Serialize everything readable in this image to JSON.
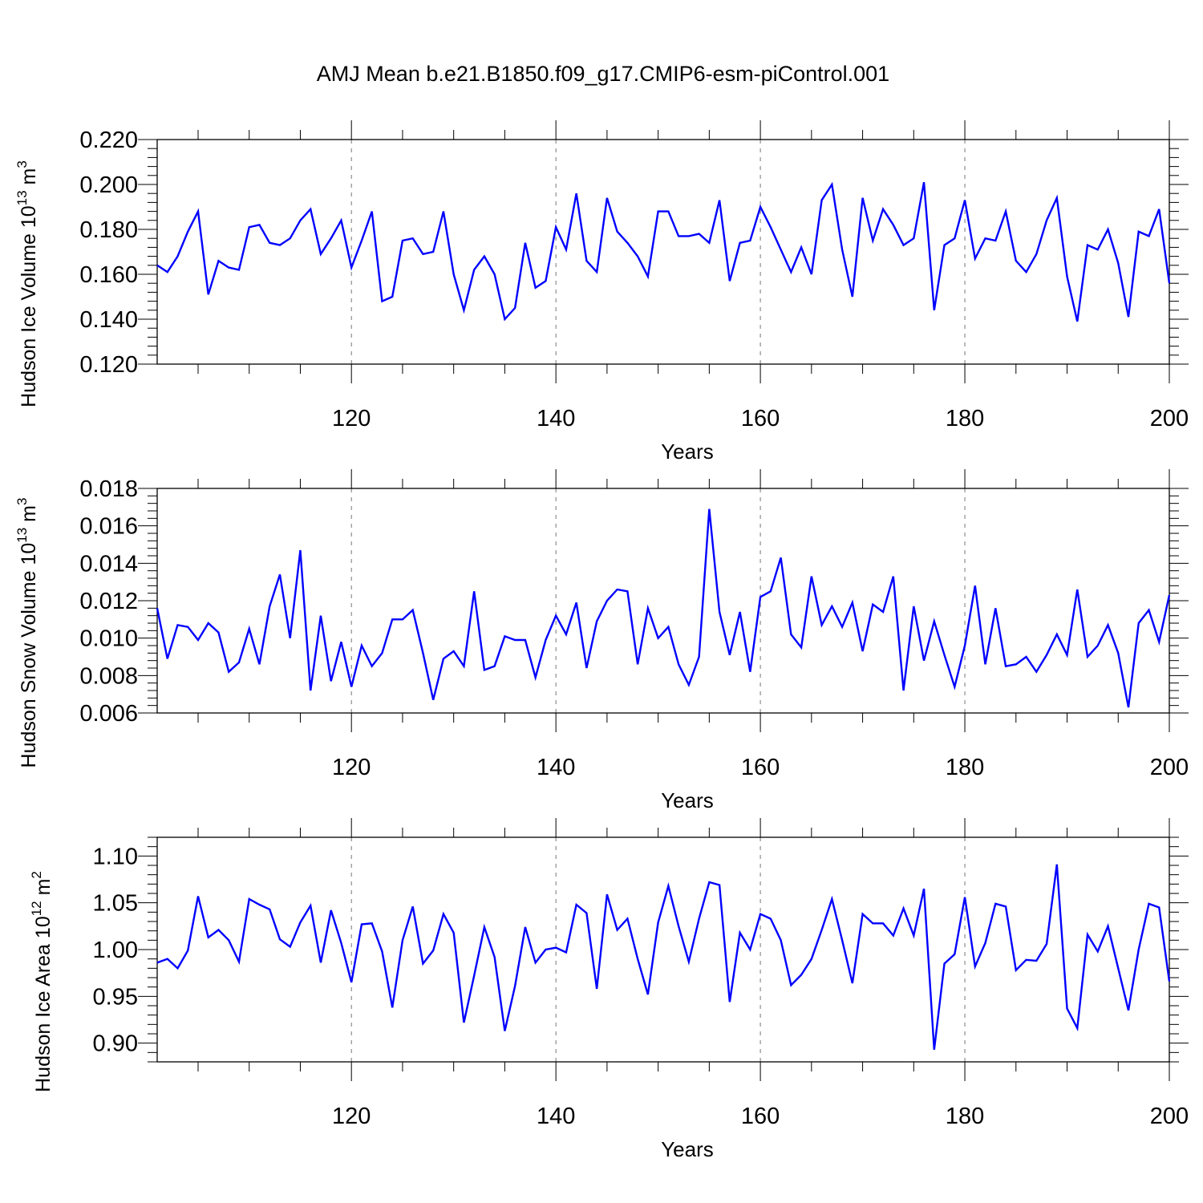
{
  "chart_data": [
    {
      "type": "line",
      "title": "AMJ Mean b.e21.B1850.f09_g17.CMIP6-esm-piControl.001",
      "ylabel_main": "Hudson Ice Volume 10",
      "ylabel_exp": "13",
      "ylabel_unit": " m",
      "ylabel_unit_exp": "3",
      "xlabel": "Years",
      "xlim": [
        101,
        200
      ],
      "ylim": [
        0.12,
        0.22
      ],
      "yticks": [
        "0.120",
        "0.140",
        "0.160",
        "0.180",
        "0.200",
        "0.220"
      ],
      "yticks_values": [
        0.12,
        0.14,
        0.16,
        0.18,
        0.2,
        0.22
      ],
      "xticks": [
        "120",
        "140",
        "160",
        "180",
        "200"
      ],
      "xticks_values": [
        120,
        140,
        160,
        180,
        200
      ],
      "grid_x": [
        120,
        140,
        160,
        180
      ],
      "color": "#0000ff",
      "x_start": 101,
      "values": [
        0.164,
        0.161,
        0.168,
        0.179,
        0.188,
        0.151,
        0.166,
        0.163,
        0.162,
        0.181,
        0.182,
        0.174,
        0.173,
        0.176,
        0.184,
        0.189,
        0.169,
        0.176,
        0.184,
        0.163,
        0.175,
        0.188,
        0.148,
        0.15,
        0.175,
        0.176,
        0.169,
        0.17,
        0.188,
        0.16,
        0.144,
        0.162,
        0.168,
        0.16,
        0.14,
        0.145,
        0.174,
        0.154,
        0.157,
        0.181,
        0.171,
        0.196,
        0.166,
        0.161,
        0.194,
        0.179,
        0.174,
        0.168,
        0.159,
        0.188,
        0.188,
        0.177,
        0.177,
        0.178,
        0.174,
        0.193,
        0.157,
        0.174,
        0.175,
        0.19,
        0.181,
        0.171,
        0.161,
        0.172,
        0.16,
        0.193,
        0.2,
        0.171,
        0.15,
        0.194,
        0.175,
        0.189,
        0.182,
        0.173,
        0.176,
        0.201,
        0.144,
        0.173,
        0.176,
        0.193,
        0.167,
        0.176,
        0.175,
        0.188,
        0.166,
        0.161,
        0.169,
        0.184,
        0.194,
        0.159,
        0.139,
        0.173,
        0.171,
        0.18,
        0.165,
        0.141,
        0.179,
        0.177,
        0.189,
        0.156
      ]
    },
    {
      "type": "line",
      "ylabel_main": "Hudson Snow Volume 10",
      "ylabel_exp": "13",
      "ylabel_unit": " m",
      "ylabel_unit_exp": "3",
      "xlabel": "Years",
      "xlim": [
        101,
        200
      ],
      "ylim": [
        0.006,
        0.018
      ],
      "yticks": [
        "0.006",
        "0.008",
        "0.010",
        "0.012",
        "0.014",
        "0.016",
        "0.018"
      ],
      "yticks_values": [
        0.006,
        0.008,
        0.01,
        0.012,
        0.014,
        0.016,
        0.018
      ],
      "xticks": [
        "120",
        "140",
        "160",
        "180",
        "200"
      ],
      "xticks_values": [
        120,
        140,
        160,
        180,
        200
      ],
      "grid_x": [
        120,
        140,
        160,
        180
      ],
      "color": "#0000ff",
      "x_start": 101,
      "values": [
        0.0116,
        0.0089,
        0.0107,
        0.0106,
        0.0099,
        0.0108,
        0.0103,
        0.0082,
        0.0087,
        0.0105,
        0.0086,
        0.0117,
        0.0134,
        0.01,
        0.0147,
        0.0072,
        0.0112,
        0.0077,
        0.0098,
        0.0074,
        0.0096,
        0.0085,
        0.0092,
        0.011,
        0.011,
        0.0115,
        0.0092,
        0.0067,
        0.0089,
        0.0093,
        0.0085,
        0.0125,
        0.0083,
        0.0085,
        0.0101,
        0.0099,
        0.0099,
        0.0079,
        0.0099,
        0.0112,
        0.0102,
        0.0119,
        0.0084,
        0.0109,
        0.012,
        0.0126,
        0.0125,
        0.0086,
        0.0116,
        0.01,
        0.0106,
        0.0086,
        0.0075,
        0.009,
        0.0169,
        0.0114,
        0.0091,
        0.0114,
        0.0082,
        0.0122,
        0.0125,
        0.0143,
        0.0102,
        0.0095,
        0.0133,
        0.0107,
        0.0117,
        0.0106,
        0.0119,
        0.0093,
        0.0118,
        0.0114,
        0.0133,
        0.0072,
        0.0117,
        0.0088,
        0.0109,
        0.0091,
        0.0074,
        0.0096,
        0.0128,
        0.0086,
        0.0116,
        0.0085,
        0.0086,
        0.009,
        0.0082,
        0.0091,
        0.0102,
        0.0091,
        0.0126,
        0.009,
        0.0096,
        0.0107,
        0.0092,
        0.0063,
        0.0108,
        0.0115,
        0.0098,
        0.0123
      ]
    },
    {
      "type": "line",
      "ylabel_main": "Hudson Ice Area 10",
      "ylabel_exp": "12",
      "ylabel_unit": " m",
      "ylabel_unit_exp": "2",
      "xlabel": "Years",
      "xlim": [
        101,
        200
      ],
      "ylim": [
        0.88,
        1.12
      ],
      "yticks": [
        "0.90",
        "0.95",
        "1.00",
        "1.05",
        "1.10"
      ],
      "yticks_values": [
        0.9,
        0.95,
        1.0,
        1.05,
        1.1
      ],
      "xticks": [
        "120",
        "140",
        "160",
        "180",
        "200"
      ],
      "xticks_values": [
        120,
        140,
        160,
        180,
        200
      ],
      "grid_x": [
        120,
        140,
        160,
        180
      ],
      "color": "#0000ff",
      "x_start": 101,
      "values": [
        0.986,
        0.99,
        0.98,
        0.999,
        1.057,
        1.013,
        1.021,
        1.01,
        0.987,
        1.054,
        1.048,
        1.043,
        1.011,
        1.003,
        1.029,
        1.047,
        0.986,
        1.042,
        1.007,
        0.965,
        1.027,
        1.028,
        0.998,
        0.938,
        1.01,
        1.046,
        0.985,
        0.999,
        1.038,
        1.018,
        0.922,
        0.972,
        1.024,
        0.992,
        0.913,
        0.961,
        1.024,
        0.986,
        1.0,
        1.002,
        0.997,
        1.048,
        1.039,
        0.958,
        1.059,
        1.021,
        1.033,
        0.99,
        0.952,
        1.029,
        1.068,
        1.025,
        0.987,
        1.033,
        1.072,
        1.069,
        0.944,
        1.018,
        1.0,
        1.038,
        1.033,
        1.01,
        0.962,
        0.973,
        0.99,
        1.021,
        1.054,
        1.01,
        0.964,
        1.038,
        1.028,
        1.028,
        1.015,
        1.044,
        1.015,
        1.065,
        0.893,
        0.985,
        0.995,
        1.056,
        0.982,
        1.007,
        1.049,
        1.046,
        0.978,
        0.989,
        0.988,
        1.006,
        1.091,
        0.937,
        0.916,
        1.016,
        0.998,
        1.025,
        0.98,
        0.935,
        1.0,
        1.049,
        1.045,
        0.966
      ]
    }
  ]
}
